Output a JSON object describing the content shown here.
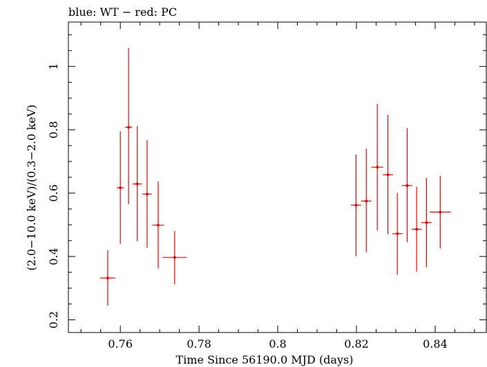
{
  "chart_data": {
    "type": "scatter",
    "title": "blue: WT − red: PC",
    "xlabel": "Time Since 56190.0 MJD (days)",
    "ylabel": "(2.0−10.0 keV)/(0.3−2.0 keV)",
    "xlim": [
      0.7468,
      0.853
    ],
    "ylim": [
      0.16,
      1.14
    ],
    "xticks": [
      0.76,
      0.78,
      0.8,
      0.82,
      0.84
    ],
    "xtick_labels": [
      "0.76",
      "0.78",
      "0.8",
      "0.82",
      "0.84"
    ],
    "yticks": [
      0.2,
      0.4,
      0.6,
      0.8,
      1.0
    ],
    "ytick_labels": [
      "0.2",
      "0.4",
      "0.6",
      "0.8",
      "1"
    ],
    "grid": false,
    "series": [
      {
        "color": "#ff0000",
        "points": [
          {
            "x": 0.7568,
            "xerr": 0.0019,
            "y": 0.332,
            "ylo": 0.245,
            "yhi": 0.42
          },
          {
            "x": 0.76,
            "xerr": 0.0009,
            "y": 0.617,
            "ylo": 0.44,
            "yhi": 0.795
          },
          {
            "x": 0.7621,
            "xerr": 0.0009,
            "y": 0.808,
            "ylo": 0.565,
            "yhi": 1.058
          },
          {
            "x": 0.7643,
            "xerr": 0.0012,
            "y": 0.629,
            "ylo": 0.448,
            "yhi": 0.812
          },
          {
            "x": 0.7668,
            "xerr": 0.0012,
            "y": 0.597,
            "ylo": 0.428,
            "yhi": 0.768
          },
          {
            "x": 0.7696,
            "xerr": 0.0015,
            "y": 0.499,
            "ylo": 0.362,
            "yhi": 0.637
          },
          {
            "x": 0.7738,
            "xerr": 0.0031,
            "y": 0.397,
            "ylo": 0.312,
            "yhi": 0.48
          },
          {
            "x": 0.8199,
            "xerr": 0.0013,
            "y": 0.562,
            "ylo": 0.401,
            "yhi": 0.722
          },
          {
            "x": 0.8225,
            "xerr": 0.0013,
            "y": 0.575,
            "ylo": 0.413,
            "yhi": 0.74
          },
          {
            "x": 0.8253,
            "xerr": 0.0015,
            "y": 0.682,
            "ylo": 0.482,
            "yhi": 0.882
          },
          {
            "x": 0.828,
            "xerr": 0.0013,
            "y": 0.658,
            "ylo": 0.47,
            "yhi": 0.847
          },
          {
            "x": 0.8304,
            "xerr": 0.0013,
            "y": 0.472,
            "ylo": 0.343,
            "yhi": 0.601
          },
          {
            "x": 0.8329,
            "xerr": 0.0013,
            "y": 0.624,
            "ylo": 0.445,
            "yhi": 0.805
          },
          {
            "x": 0.8353,
            "xerr": 0.0013,
            "y": 0.486,
            "ylo": 0.352,
            "yhi": 0.62
          },
          {
            "x": 0.8378,
            "xerr": 0.0013,
            "y": 0.507,
            "ylo": 0.366,
            "yhi": 0.648
          },
          {
            "x": 0.8413,
            "xerr": 0.0027,
            "y": 0.54,
            "ylo": 0.425,
            "yhi": 0.655
          }
        ]
      }
    ]
  }
}
